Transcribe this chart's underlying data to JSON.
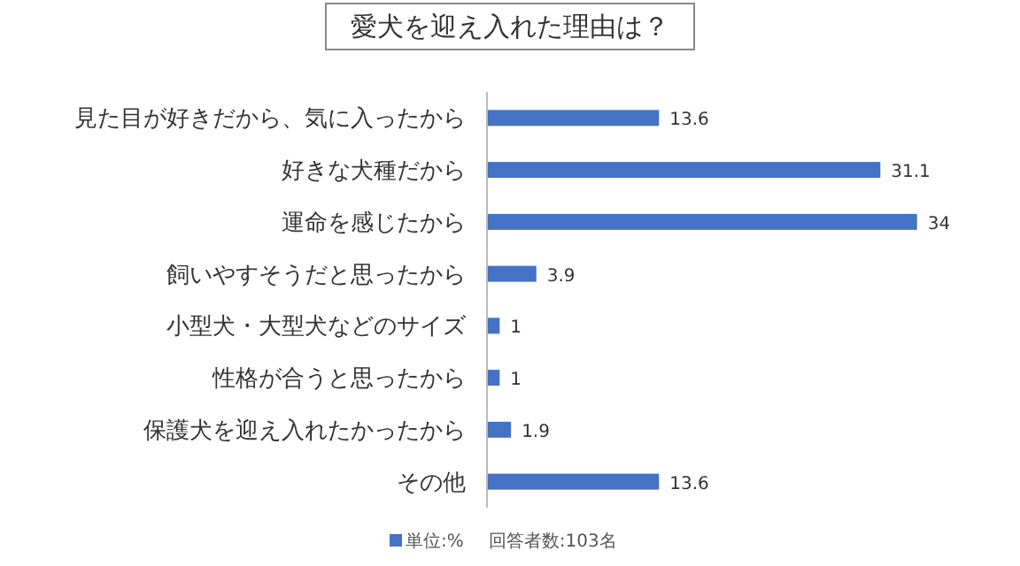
{
  "chart_data": {
    "type": "bar",
    "orientation": "horizontal",
    "title": "愛犬を迎え入れた理由は？",
    "categories": [
      "見た目が好きだから、気に入ったから",
      "好きな犬種だから",
      "運命を感じたから",
      "飼いやすそうだと思ったから",
      "小型犬・大型犬などのサイズ",
      "性格が合うと思ったから",
      "保護犬を迎え入れたかったから",
      "その他"
    ],
    "series": [
      {
        "name": "単位:%",
        "color": "#4472c4",
        "values": [
          13.6,
          31.1,
          34,
          3.9,
          1,
          1,
          1.9,
          13.6
        ]
      }
    ],
    "data_labels": true,
    "legend": "bottom",
    "annotations": [
      "回答者数:103名"
    ]
  }
}
